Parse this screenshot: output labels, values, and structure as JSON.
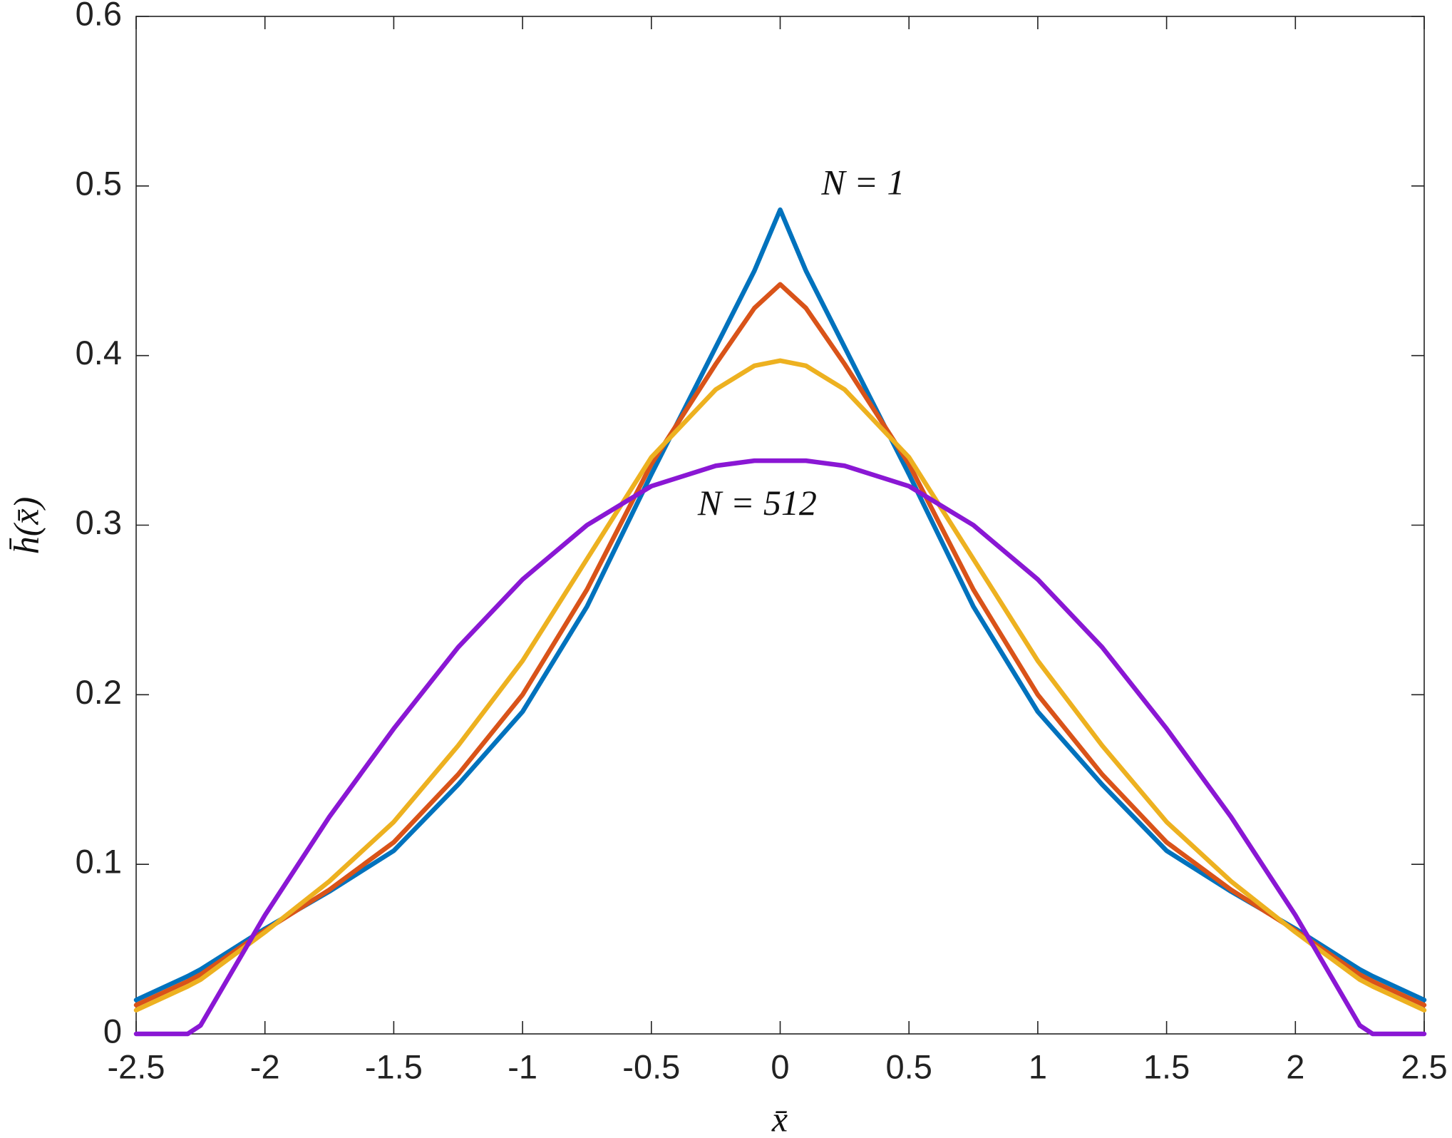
{
  "chart_data": {
    "type": "line",
    "x_label": "x̄",
    "y_label": "h̄(x̄)",
    "x": [
      -2.5,
      -2.3,
      -2.25,
      -2,
      -1.75,
      -1.5,
      -1.25,
      -1,
      -0.75,
      -0.5,
      -0.25,
      -0.1,
      0,
      0.1,
      0.25,
      0.5,
      0.75,
      1,
      1.25,
      1.5,
      1.75,
      2,
      2.25,
      2.3,
      2.5
    ],
    "series": [
      {
        "color": "#0072bd",
        "values": [
          0.02,
          0.034,
          0.038,
          0.062,
          0.084,
          0.108,
          0.147,
          0.19,
          0.252,
          0.33,
          0.405,
          0.45,
          0.486,
          0.45,
          0.405,
          0.33,
          0.252,
          0.19,
          0.147,
          0.108,
          0.084,
          0.062,
          0.038,
          0.034,
          0.02
        ]
      },
      {
        "color": "#d95319",
        "values": [
          0.017,
          0.031,
          0.035,
          0.061,
          0.085,
          0.113,
          0.153,
          0.2,
          0.262,
          0.336,
          0.395,
          0.428,
          0.442,
          0.428,
          0.395,
          0.336,
          0.262,
          0.2,
          0.153,
          0.113,
          0.085,
          0.061,
          0.035,
          0.031,
          0.017
        ]
      },
      {
        "color": "#edb120",
        "values": [
          0.014,
          0.028,
          0.032,
          0.06,
          0.09,
          0.125,
          0.17,
          0.22,
          0.28,
          0.34,
          0.38,
          0.394,
          0.397,
          0.394,
          0.38,
          0.34,
          0.28,
          0.22,
          0.17,
          0.125,
          0.09,
          0.06,
          0.032,
          0.028,
          0.014
        ]
      },
      {
        "color": "#8a17d4",
        "values": [
          0,
          0,
          0.005,
          0.07,
          0.128,
          0.18,
          0.228,
          0.268,
          0.3,
          0.323,
          0.335,
          0.338,
          0.338,
          0.338,
          0.335,
          0.323,
          0.3,
          0.268,
          0.228,
          0.18,
          0.128,
          0.07,
          0.005,
          0,
          0
        ]
      }
    ],
    "annotations": [
      {
        "text": "N = 1",
        "x": 0.16,
        "y": 0.5
      },
      {
        "text": "N = 512",
        "x": -0.32,
        "y": 0.311
      }
    ],
    "xlim": [
      -2.5,
      2.5
    ],
    "ylim": [
      0,
      0.6
    ],
    "xticks": [
      -2.5,
      -2,
      -1.5,
      -1,
      -0.5,
      0,
      0.5,
      1,
      1.5,
      2,
      2.5
    ],
    "yticks": [
      0,
      0.1,
      0.2,
      0.3,
      0.4,
      0.5,
      0.6
    ],
    "grid": false
  }
}
